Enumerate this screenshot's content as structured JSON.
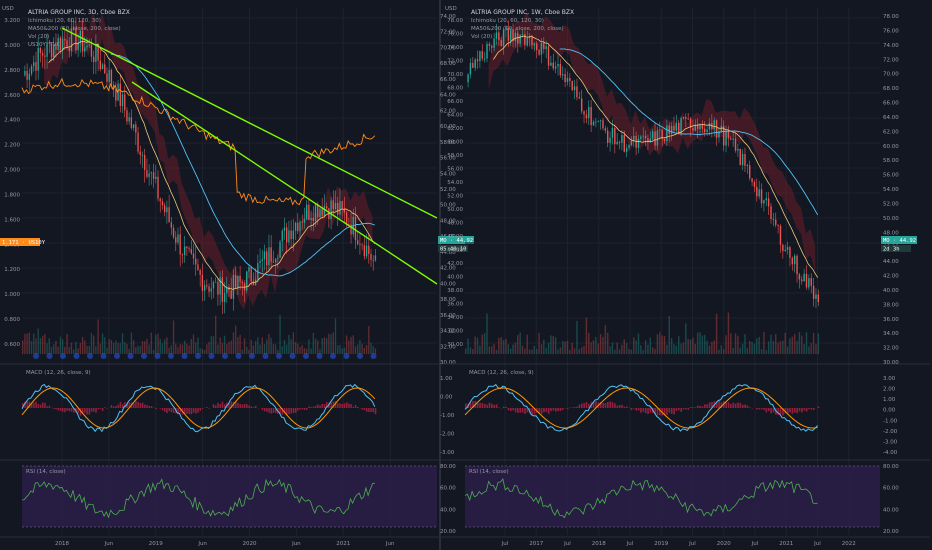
{
  "panes": [
    {
      "id": "left",
      "price_scale_label": "USD",
      "legend": [
        "ALTRIA GROUP INC, 3D, Cboe BZX",
        "Ichimoku (20, 60, 120, 30)",
        "MA50&200 (50, close, 200, close)",
        "Vol (20)",
        "US10Y, TVC"
      ],
      "left_ticks": [
        "3.200",
        "3.000",
        "2.800",
        "2.600",
        "2.400",
        "2.200",
        "2.000",
        "1.800",
        "1.600",
        "1.400",
        "1.200",
        "1.000",
        "0.800",
        "0.600"
      ],
      "right_ticks": [
        "74.00",
        "72.00",
        "70.00",
        "68.00",
        "66.00",
        "64.00",
        "62.00",
        "60.00",
        "58.00",
        "56.00",
        "54.00",
        "52.00",
        "50.00",
        "48.00",
        "46.00",
        "44.00",
        "42.00",
        "40.00",
        "38.00",
        "36.00",
        "34.00",
        "32.00",
        "30.00"
      ],
      "overlay_badge": "1.171 · US10Y",
      "price_badge": "MO · 44.92",
      "time_badge": "05:40:10",
      "macd_title": "MACD (12, 26, close, 9)",
      "macd_ticks": [
        "1.00",
        "0.00",
        "-1.00",
        "-2.00",
        "-3.00"
      ],
      "rsi_title": "RSI (14, close)",
      "rsi_ticks": [
        "80.00",
        "60.00",
        "40.00",
        "20.00"
      ],
      "x_ticks": [
        "2018",
        "Jun",
        "2019",
        "Jun",
        "2020",
        "Jun",
        "2021",
        "Jun"
      ]
    },
    {
      "id": "right",
      "price_scale_label": "USD",
      "legend": [
        "ALTRIA GROUP INC, 1W, Cboe BZX",
        "Ichimoku (20, 60, 120, 30)",
        "MA50&200 (50, close, 200, close)",
        "Vol (20)"
      ],
      "left_ticks": [
        "78.00",
        "76.00",
        "74.00",
        "72.00",
        "70.00",
        "68.00",
        "66.00",
        "64.00",
        "62.00",
        "60.00",
        "58.00",
        "56.00",
        "54.00",
        "52.00",
        "50.00",
        "48.00",
        "46.00",
        "44.00",
        "42.00",
        "40.00",
        "38.00",
        "36.00",
        "34.00",
        "32.00",
        "30.00"
      ],
      "right_ticks": [
        "78.00",
        "76.00",
        "74.00",
        "72.00",
        "70.00",
        "68.00",
        "66.00",
        "64.00",
        "62.00",
        "60.00",
        "58.00",
        "56.00",
        "54.00",
        "52.00",
        "50.00",
        "48.00",
        "46.00",
        "44.00",
        "42.00",
        "40.00",
        "38.00",
        "36.00",
        "34.00",
        "32.00",
        "30.00"
      ],
      "price_badge": "MO · 44.92",
      "time_badge": "2d 3h",
      "macd_title": "MACD (12, 26, close, 9)",
      "macd_ticks": [
        "3.00",
        "2.00",
        "1.00",
        "0.00",
        "-1.00",
        "-2.00",
        "-3.00",
        "-4.00"
      ],
      "rsi_title": "RSI (14, close)",
      "rsi_ticks": [
        "80.00",
        "60.00",
        "40.00",
        "20.00"
      ],
      "x_ticks": [
        "Jul",
        "2017",
        "Jul",
        "2018",
        "Jul",
        "2019",
        "Jul",
        "2020",
        "Jul",
        "2021",
        "Jul",
        "2022"
      ]
    }
  ],
  "colors": {
    "bg": "#131722",
    "up": "#26a69a",
    "down": "#ef5350",
    "trendline": "#7cfc00",
    "ma50": "#f0c674",
    "ma200": "#4fc3f7",
    "us10y": "#ff8c1a",
    "cloud_bear": "#7a1f2a",
    "cloud_bull": "#1f4d2a",
    "rsi_band": "#2a1e46",
    "macd_line": "#4fc3f7",
    "signal_line": "#ff9800",
    "rsi_line": "#4caf50",
    "badge_mo": "#26a69a",
    "badge_us10y": "#ff8c1a"
  }
}
